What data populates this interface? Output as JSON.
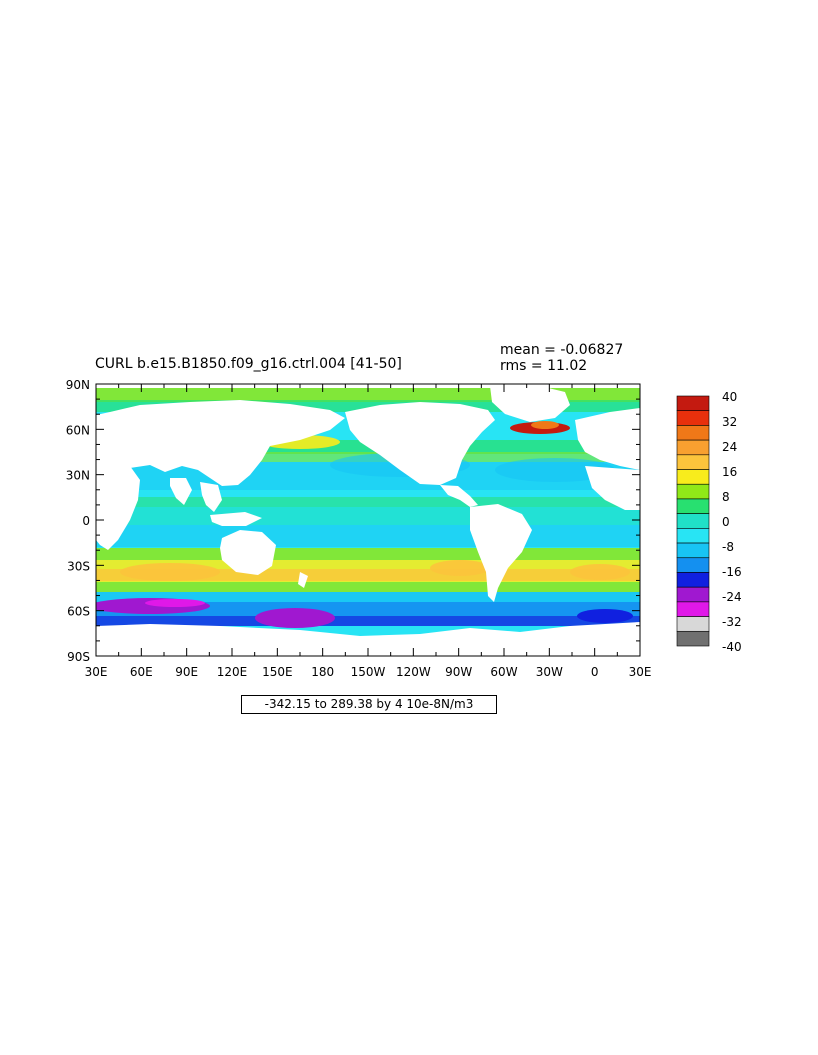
{
  "header": {
    "title": "CURL b.e15.B1850.f09_g16.ctrl.004 [41-50]",
    "mean_text": "mean = -0.06827",
    "rms_text": "rms = 11.02"
  },
  "axes": {
    "y_labels": [
      "90N",
      "60N",
      "30N",
      "0",
      "30S",
      "60S",
      "90S"
    ],
    "x_labels": [
      "30E",
      "60E",
      "90E",
      "120E",
      "150E",
      "180",
      "150W",
      "120W",
      "90W",
      "60W",
      "30W",
      "0",
      "30E"
    ]
  },
  "range_text": "-342.15 to 289.38 by 4 10e-8N/m3",
  "colorbar": {
    "labels": [
      "40",
      "32",
      "24",
      "16",
      "8",
      "0",
      "-8",
      "-16",
      "-24",
      "-32",
      "-40"
    ],
    "colors": [
      "#c41a10",
      "#e8300c",
      "#f07818",
      "#f8a030",
      "#fcc43c",
      "#f8ec1c",
      "#90e818",
      "#28e070",
      "#20e0c8",
      "#28e4f4",
      "#18c4f4",
      "#1490f0",
      "#1020e0",
      "#a018d0",
      "#e018e8",
      "#d8d8d8",
      "#707070"
    ]
  },
  "colors": {
    "land": "#ffffff",
    "ocean_base": "#28e4f4"
  }
}
